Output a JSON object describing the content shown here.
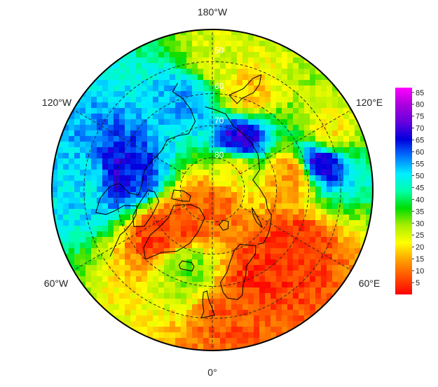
{
  "chart_data": {
    "type": "heatmap",
    "projection": "north-polar-stereographic",
    "title": "",
    "longitude_labels": [
      "180°W",
      "120°W",
      "60°W",
      "0°",
      "60°E",
      "120°E"
    ],
    "latitude_labels": [
      "50",
      "60",
      "70",
      "80"
    ],
    "grid": true,
    "colorbar": {
      "placement": "right",
      "min": 0,
      "max": 87,
      "ticks": [
        5,
        10,
        15,
        20,
        25,
        30,
        35,
        40,
        45,
        50,
        55,
        60,
        65,
        70,
        75,
        80,
        85
      ],
      "colors": [
        "#ff0000",
        "#ff5000",
        "#ffa000",
        "#ffff00",
        "#aaee00",
        "#00dd00",
        "#00ffaa",
        "#00eeff",
        "#0077ff",
        "#0000dd",
        "#6600dd",
        "#aa00dd",
        "#ff00ff"
      ]
    },
    "regions": [
      {
        "lat": 50,
        "lon": 180,
        "value": 25
      },
      {
        "lat": 60,
        "lon": -165,
        "value": 55
      },
      {
        "lat": 72,
        "lon": 150,
        "value": 70
      },
      {
        "lat": 60,
        "lon": -100,
        "value": 68
      },
      {
        "lat": 65,
        "lon": -100,
        "value": 62
      },
      {
        "lat": 52,
        "lon": -95,
        "value": 50
      },
      {
        "lat": 75,
        "lon": -40,
        "value": 6
      },
      {
        "lat": 68,
        "lon": -50,
        "value": 5
      },
      {
        "lat": 65,
        "lon": -20,
        "value": 32
      },
      {
        "lat": 60,
        "lon": 30,
        "value": 4
      },
      {
        "lat": 60,
        "lon": 55,
        "value": 4
      },
      {
        "lat": 50,
        "lon": 10,
        "value": 8
      },
      {
        "lat": 55,
        "lon": 105,
        "value": 70
      },
      {
        "lat": 50,
        "lon": 115,
        "value": 20
      },
      {
        "lat": 65,
        "lon": 100,
        "value": 12
      },
      {
        "lat": 85,
        "lon": 0,
        "value": 9
      },
      {
        "lat": 80,
        "lon": 130,
        "value": 22
      },
      {
        "lat": 58,
        "lon": 160,
        "value": 18
      }
    ]
  }
}
